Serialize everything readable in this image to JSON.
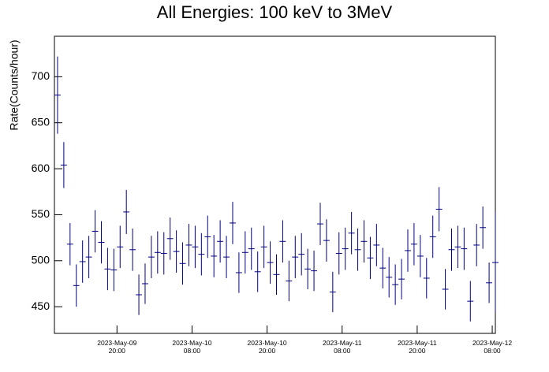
{
  "chart_data": {
    "type": "errorbar",
    "title": "All Energies:  100 keV to 3MeV",
    "ylabel": "Rate(Counts/hour)",
    "color": "#000080",
    "x": [
      "2023-05-09 10:30",
      "2023-05-09 11:30",
      "2023-05-09 12:30",
      "2023-05-09 13:30",
      "2023-05-09 14:30",
      "2023-05-09 15:30",
      "2023-05-09 16:30",
      "2023-05-09 17:30",
      "2023-05-09 18:30",
      "2023-05-09 19:30",
      "2023-05-09 20:30",
      "2023-05-09 21:30",
      "2023-05-09 22:30",
      "2023-05-09 23:30",
      "2023-05-10 00:30",
      "2023-05-10 01:30",
      "2023-05-10 02:30",
      "2023-05-10 03:30",
      "2023-05-10 04:30",
      "2023-05-10 05:30",
      "2023-05-10 06:30",
      "2023-05-10 07:30",
      "2023-05-10 08:30",
      "2023-05-10 09:30",
      "2023-05-10 10:30",
      "2023-05-10 11:30",
      "2023-05-10 12:30",
      "2023-05-10 13:30",
      "2023-05-10 14:30",
      "2023-05-10 15:30",
      "2023-05-10 16:30",
      "2023-05-10 17:30",
      "2023-05-10 18:30",
      "2023-05-10 19:30",
      "2023-05-10 20:30",
      "2023-05-10 21:30",
      "2023-05-10 22:30",
      "2023-05-10 23:30",
      "2023-05-11 00:30",
      "2023-05-11 01:30",
      "2023-05-11 02:30",
      "2023-05-11 03:30",
      "2023-05-11 04:30",
      "2023-05-11 05:30",
      "2023-05-11 06:30",
      "2023-05-11 07:30",
      "2023-05-11 08:30",
      "2023-05-11 09:30",
      "2023-05-11 10:30",
      "2023-05-11 11:30",
      "2023-05-11 12:30",
      "2023-05-11 13:30",
      "2023-05-11 14:30",
      "2023-05-11 15:30",
      "2023-05-11 16:30",
      "2023-05-11 17:30",
      "2023-05-11 18:30",
      "2023-05-11 19:30",
      "2023-05-11 20:30",
      "2023-05-11 21:30",
      "2023-05-11 22:30",
      "2023-05-11 23:30",
      "2023-05-12 00:30",
      "2023-05-12 01:30",
      "2023-05-12 02:30",
      "2023-05-12 03:30",
      "2023-05-12 04:30",
      "2023-05-12 05:30",
      "2023-05-12 06:30",
      "2023-05-12 07:30",
      "2023-05-12 08:30"
    ],
    "values": [
      680,
      604,
      518,
      473,
      499,
      504,
      532,
      520,
      491,
      490,
      515,
      553,
      512,
      463,
      475,
      504,
      509,
      508,
      524,
      510,
      497,
      517,
      515,
      507,
      526,
      505,
      521,
      504,
      541,
      487,
      509,
      513,
      488,
      515,
      498,
      485,
      521,
      478,
      504,
      507,
      491,
      489,
      540,
      522,
      466,
      508,
      513,
      530,
      512,
      521,
      503,
      517,
      492,
      482,
      474,
      480,
      511,
      518,
      505,
      481,
      526,
      556,
      469,
      512,
      515,
      513,
      456,
      517,
      536,
      476,
      498
    ],
    "errors": [
      42,
      25,
      23,
      23,
      23,
      23,
      23,
      23,
      23,
      23,
      23,
      24,
      23,
      22,
      22,
      23,
      23,
      23,
      23,
      23,
      23,
      23,
      23,
      23,
      23,
      23,
      23,
      23,
      23,
      22,
      23,
      23,
      22,
      23,
      23,
      22,
      23,
      22,
      23,
      23,
      22,
      22,
      23,
      23,
      22,
      23,
      23,
      23,
      23,
      23,
      23,
      23,
      22,
      22,
      22,
      22,
      23,
      23,
      23,
      22,
      23,
      24,
      22,
      23,
      23,
      23,
      22,
      23,
      23,
      22,
      55
    ],
    "xlim": [
      "2023-05-09 10:00",
      "2023-05-12 08:30"
    ],
    "xticks": [
      {
        "value": "2023-05-09 20:00",
        "label": "2023-May-09 20:00"
      },
      {
        "value": "2023-05-10 08:00",
        "label": "2023-May-10 08:00"
      },
      {
        "value": "2023-05-10 20:00",
        "label": "2023-May-10 20:00"
      },
      {
        "value": "2023-05-11 08:00",
        "label": "2023-May-11 08:00"
      },
      {
        "value": "2023-05-11 20:00",
        "label": "2023-May-11 20:00"
      },
      {
        "value": "2023-05-12 08:00",
        "label": "2023-May-12 08:00"
      }
    ],
    "ylim": [
      421,
      744
    ],
    "yticks": [
      450,
      500,
      550,
      600,
      650,
      700
    ]
  }
}
